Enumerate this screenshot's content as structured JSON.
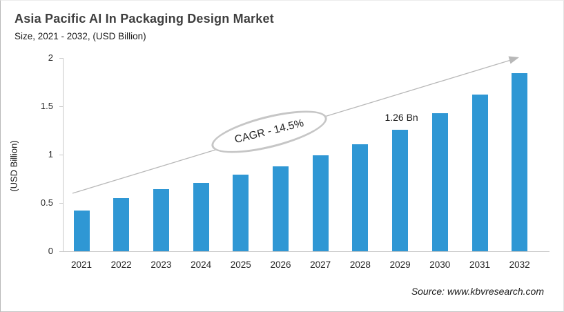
{
  "header": {
    "title": "Asia Pacific AI In Packaging Design Market",
    "subtitle": "Size, 2021 - 2032, (USD Billion)"
  },
  "chart_data": {
    "type": "bar",
    "title": "Asia Pacific AI In Packaging Design Market Size, 2021 - 2032, (USD Billion)",
    "categories": [
      "2021",
      "2022",
      "2023",
      "2024",
      "2025",
      "2026",
      "2027",
      "2028",
      "2029",
      "2030",
      "2031",
      "2032"
    ],
    "values": [
      0.42,
      0.55,
      0.64,
      0.71,
      0.79,
      0.88,
      0.99,
      1.11,
      1.26,
      1.43,
      1.62,
      1.84
    ],
    "xlabel": "",
    "ylabel": "(USD Billion)",
    "ylim": [
      0,
      2
    ],
    "yticks": [
      0,
      0.5,
      1,
      1.5,
      2
    ],
    "grid": false,
    "legend": false,
    "bar_color": "#2f97d4",
    "axis_color": "#c9c9c9",
    "annotations": {
      "cagr": {
        "text": "CAGR - 14.5%"
      },
      "point_label": {
        "text": "1.26 Bn",
        "category": "2029"
      },
      "trend_arrow": {
        "color": "#b8b8b8"
      }
    }
  },
  "footer": {
    "source": "Source: www.kbvresearch.com"
  }
}
